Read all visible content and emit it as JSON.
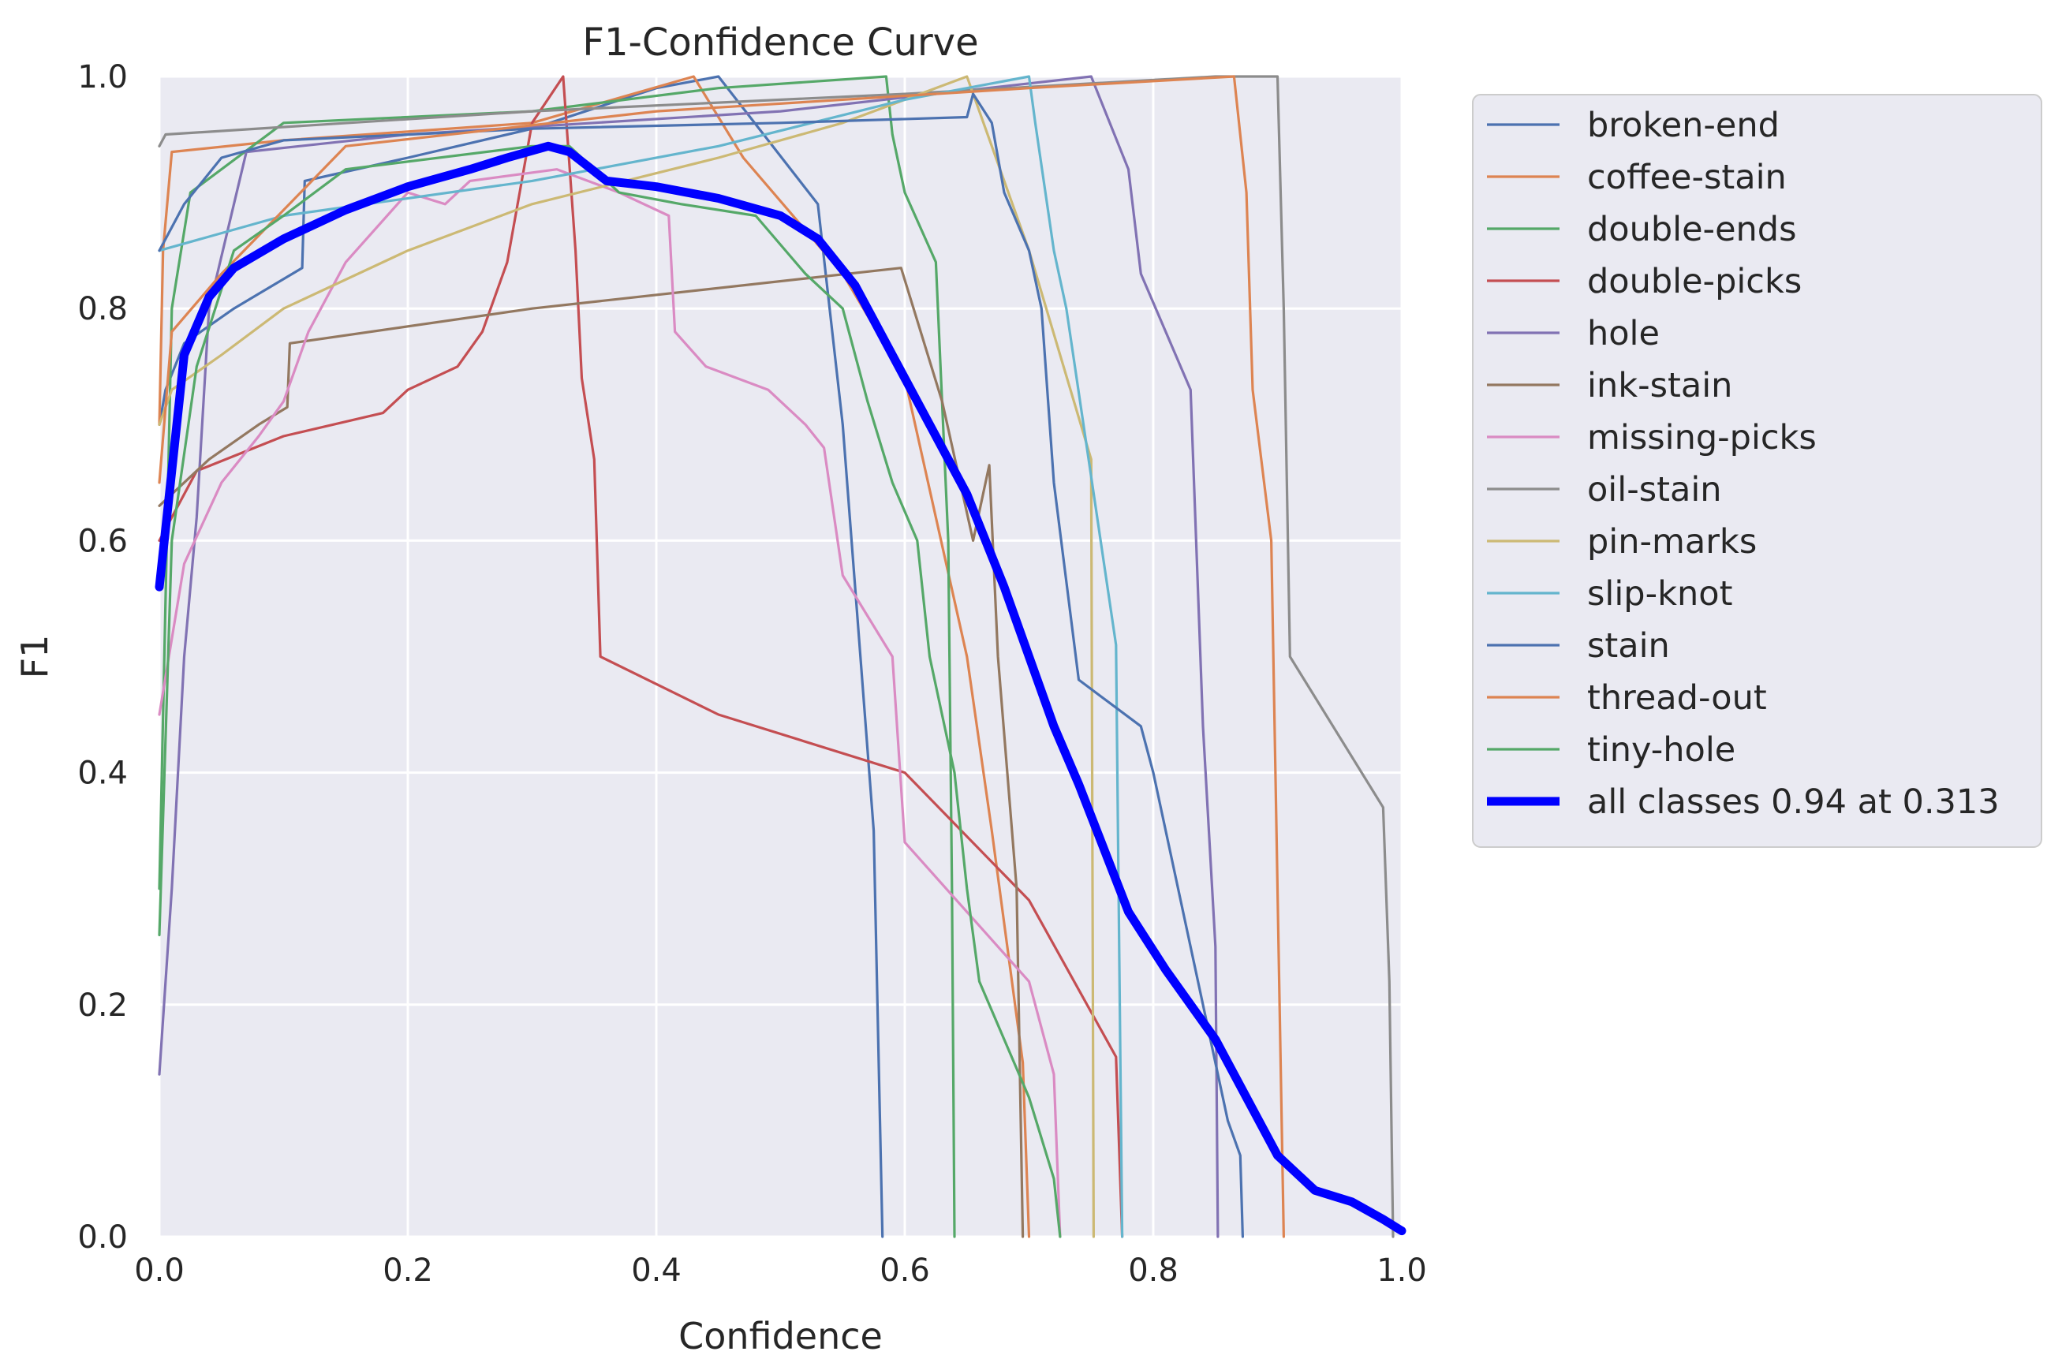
{
  "chart_data": {
    "type": "line",
    "title": "F1-Confidence Curve",
    "xlabel": "Confidence",
    "ylabel": "F1",
    "xlim": [
      0,
      1
    ],
    "ylim": [
      0,
      1
    ],
    "grid": true,
    "legend_position": "outside-top-right",
    "x_ticks": [
      "0.0",
      "0.2",
      "0.4",
      "0.6",
      "0.8",
      "1.0"
    ],
    "y_ticks": [
      "0.0",
      "0.2",
      "0.4",
      "0.6",
      "0.8",
      "1.0"
    ],
    "series": [
      {
        "name": "broken-end",
        "color": "#4c72b0",
        "width": "thin",
        "points": [
          [
            0,
            0.7
          ],
          [
            0.005,
            0.73
          ],
          [
            0.02,
            0.77
          ],
          [
            0.06,
            0.8
          ],
          [
            0.115,
            0.835
          ],
          [
            0.117,
            0.91
          ],
          [
            0.2,
            0.93
          ],
          [
            0.3,
            0.955
          ],
          [
            0.4,
            0.99
          ],
          [
            0.45,
            1.0
          ],
          [
            0.53,
            0.89
          ],
          [
            0.55,
            0.7
          ],
          [
            0.575,
            0.35
          ],
          [
            0.582,
            0.0
          ]
        ]
      },
      {
        "name": "coffee-stain",
        "color": "#dd8452",
        "width": "thin",
        "points": [
          [
            0,
            0.7
          ],
          [
            0.003,
            0.85
          ],
          [
            0.01,
            0.935
          ],
          [
            0.1,
            0.945
          ],
          [
            0.3,
            0.96
          ],
          [
            0.43,
            1.0
          ],
          [
            0.47,
            0.93
          ],
          [
            0.55,
            0.83
          ],
          [
            0.6,
            0.74
          ],
          [
            0.65,
            0.5
          ],
          [
            0.67,
            0.35
          ],
          [
            0.695,
            0.15
          ],
          [
            0.7,
            0.0
          ]
        ]
      },
      {
        "name": "double-ends",
        "color": "#55a868",
        "width": "thin",
        "points": [
          [
            0,
            0.3
          ],
          [
            0.01,
            0.8
          ],
          [
            0.025,
            0.9
          ],
          [
            0.1,
            0.96
          ],
          [
            0.3,
            0.97
          ],
          [
            0.45,
            0.99
          ],
          [
            0.585,
            1.0
          ],
          [
            0.59,
            0.95
          ],
          [
            0.6,
            0.9
          ],
          [
            0.625,
            0.84
          ],
          [
            0.635,
            0.6
          ],
          [
            0.638,
            0.3
          ],
          [
            0.64,
            0.0
          ]
        ]
      },
      {
        "name": "double-picks",
        "color": "#c44e52",
        "width": "thin",
        "points": [
          [
            0,
            0.6
          ],
          [
            0.03,
            0.66
          ],
          [
            0.1,
            0.69
          ],
          [
            0.18,
            0.71
          ],
          [
            0.2,
            0.73
          ],
          [
            0.24,
            0.75
          ],
          [
            0.26,
            0.78
          ],
          [
            0.28,
            0.84
          ],
          [
            0.29,
            0.9
          ],
          [
            0.3,
            0.96
          ],
          [
            0.325,
            1.0
          ],
          [
            0.335,
            0.85
          ],
          [
            0.34,
            0.74
          ],
          [
            0.35,
            0.67
          ],
          [
            0.355,
            0.5
          ],
          [
            0.45,
            0.45
          ],
          [
            0.6,
            0.4
          ],
          [
            0.7,
            0.29
          ],
          [
            0.77,
            0.155
          ],
          [
            0.775,
            0.0
          ]
        ]
      },
      {
        "name": "hole",
        "color": "#8172b3",
        "width": "thin",
        "points": [
          [
            0,
            0.14
          ],
          [
            0.01,
            0.3
          ],
          [
            0.02,
            0.5
          ],
          [
            0.03,
            0.62
          ],
          [
            0.04,
            0.8
          ],
          [
            0.07,
            0.935
          ],
          [
            0.2,
            0.95
          ],
          [
            0.5,
            0.97
          ],
          [
            0.75,
            1.0
          ],
          [
            0.78,
            0.92
          ],
          [
            0.79,
            0.83
          ],
          [
            0.83,
            0.73
          ],
          [
            0.84,
            0.44
          ],
          [
            0.85,
            0.25
          ],
          [
            0.852,
            0.0
          ]
        ]
      },
      {
        "name": "ink-stain",
        "color": "#937860",
        "width": "thin",
        "points": [
          [
            0,
            0.63
          ],
          [
            0.04,
            0.67
          ],
          [
            0.08,
            0.7
          ],
          [
            0.103,
            0.715
          ],
          [
            0.105,
            0.77
          ],
          [
            0.3,
            0.8
          ],
          [
            0.597,
            0.835
          ],
          [
            0.63,
            0.72
          ],
          [
            0.655,
            0.6
          ],
          [
            0.668,
            0.665
          ],
          [
            0.675,
            0.5
          ],
          [
            0.69,
            0.3
          ],
          [
            0.695,
            0.0
          ]
        ]
      },
      {
        "name": "missing-picks",
        "color": "#da8bc3",
        "width": "thin",
        "points": [
          [
            0,
            0.45
          ],
          [
            0.02,
            0.58
          ],
          [
            0.05,
            0.65
          ],
          [
            0.08,
            0.69
          ],
          [
            0.1,
            0.72
          ],
          [
            0.12,
            0.78
          ],
          [
            0.15,
            0.84
          ],
          [
            0.2,
            0.9
          ],
          [
            0.23,
            0.89
          ],
          [
            0.25,
            0.91
          ],
          [
            0.32,
            0.92
          ],
          [
            0.37,
            0.9
          ],
          [
            0.41,
            0.88
          ],
          [
            0.415,
            0.78
          ],
          [
            0.44,
            0.75
          ],
          [
            0.49,
            0.73
          ],
          [
            0.52,
            0.7
          ],
          [
            0.535,
            0.68
          ],
          [
            0.55,
            0.57
          ],
          [
            0.59,
            0.5
          ],
          [
            0.6,
            0.34
          ],
          [
            0.7,
            0.22
          ],
          [
            0.72,
            0.14
          ],
          [
            0.725,
            0.0
          ]
        ]
      },
      {
        "name": "oil-stain",
        "color": "#8c8c8c",
        "width": "thin",
        "points": [
          [
            0,
            0.94
          ],
          [
            0.005,
            0.95
          ],
          [
            0.3,
            0.97
          ],
          [
            0.6,
            0.985
          ],
          [
            0.85,
            1.0
          ],
          [
            0.9,
            1.0
          ],
          [
            0.905,
            0.8
          ],
          [
            0.91,
            0.5
          ],
          [
            0.985,
            0.37
          ],
          [
            0.99,
            0.22
          ],
          [
            0.993,
            0.0
          ]
        ]
      },
      {
        "name": "pin-marks",
        "color": "#ccb974",
        "width": "thin",
        "points": [
          [
            0,
            0.7
          ],
          [
            0.01,
            0.73
          ],
          [
            0.05,
            0.76
          ],
          [
            0.1,
            0.8
          ],
          [
            0.2,
            0.85
          ],
          [
            0.3,
            0.89
          ],
          [
            0.45,
            0.93
          ],
          [
            0.55,
            0.96
          ],
          [
            0.6,
            0.98
          ],
          [
            0.65,
            1.0
          ],
          [
            0.67,
            0.94
          ],
          [
            0.7,
            0.85
          ],
          [
            0.75,
            0.67
          ],
          [
            0.752,
            0.0
          ]
        ]
      },
      {
        "name": "slip-knot",
        "color": "#64b5cd",
        "width": "thin",
        "points": [
          [
            0,
            0.85
          ],
          [
            0.1,
            0.88
          ],
          [
            0.3,
            0.91
          ],
          [
            0.45,
            0.94
          ],
          [
            0.6,
            0.98
          ],
          [
            0.7,
            1.0
          ],
          [
            0.705,
            0.96
          ],
          [
            0.72,
            0.85
          ],
          [
            0.73,
            0.8
          ],
          [
            0.77,
            0.51
          ],
          [
            0.775,
            0.0
          ]
        ]
      },
      {
        "name": "stain",
        "color": "#4c72b0",
        "width": "thin",
        "points": [
          [
            0,
            0.85
          ],
          [
            0.02,
            0.89
          ],
          [
            0.05,
            0.93
          ],
          [
            0.1,
            0.945
          ],
          [
            0.3,
            0.955
          ],
          [
            0.5,
            0.96
          ],
          [
            0.65,
            0.965
          ],
          [
            0.655,
            0.985
          ],
          [
            0.67,
            0.96
          ],
          [
            0.68,
            0.9
          ],
          [
            0.7,
            0.85
          ],
          [
            0.71,
            0.8
          ],
          [
            0.72,
            0.65
          ],
          [
            0.74,
            0.48
          ],
          [
            0.79,
            0.44
          ],
          [
            0.8,
            0.4
          ],
          [
            0.82,
            0.3
          ],
          [
            0.84,
            0.2
          ],
          [
            0.86,
            0.1
          ],
          [
            0.87,
            0.07
          ],
          [
            0.872,
            0.0
          ]
        ]
      },
      {
        "name": "thread-out",
        "color": "#dd8452",
        "width": "thin",
        "points": [
          [
            0,
            0.65
          ],
          [
            0.01,
            0.78
          ],
          [
            0.05,
            0.83
          ],
          [
            0.15,
            0.94
          ],
          [
            0.4,
            0.97
          ],
          [
            0.7,
            0.99
          ],
          [
            0.865,
            1.0
          ],
          [
            0.875,
            0.9
          ],
          [
            0.88,
            0.73
          ],
          [
            0.895,
            0.6
          ],
          [
            0.905,
            0.0
          ]
        ]
      },
      {
        "name": "tiny-hole",
        "color": "#55a868",
        "width": "thin",
        "points": [
          [
            0,
            0.26
          ],
          [
            0.01,
            0.6
          ],
          [
            0.03,
            0.75
          ],
          [
            0.06,
            0.85
          ],
          [
            0.1,
            0.88
          ],
          [
            0.15,
            0.92
          ],
          [
            0.3,
            0.94
          ],
          [
            0.33,
            0.94
          ],
          [
            0.37,
            0.9
          ],
          [
            0.42,
            0.89
          ],
          [
            0.48,
            0.88
          ],
          [
            0.52,
            0.83
          ],
          [
            0.55,
            0.8
          ],
          [
            0.57,
            0.72
          ],
          [
            0.59,
            0.65
          ],
          [
            0.61,
            0.6
          ],
          [
            0.62,
            0.5
          ],
          [
            0.64,
            0.4
          ],
          [
            0.65,
            0.3
          ],
          [
            0.66,
            0.22
          ],
          [
            0.68,
            0.17
          ],
          [
            0.7,
            0.12
          ],
          [
            0.72,
            0.05
          ],
          [
            0.725,
            0.0
          ]
        ]
      },
      {
        "name": "all classes 0.94 at 0.313",
        "color": "#0000ff",
        "width": "thick",
        "points": [
          [
            0,
            0.56
          ],
          [
            0.01,
            0.66
          ],
          [
            0.02,
            0.76
          ],
          [
            0.04,
            0.81
          ],
          [
            0.06,
            0.835
          ],
          [
            0.1,
            0.86
          ],
          [
            0.15,
            0.885
          ],
          [
            0.2,
            0.905
          ],
          [
            0.25,
            0.92
          ],
          [
            0.28,
            0.93
          ],
          [
            0.313,
            0.94
          ],
          [
            0.33,
            0.935
          ],
          [
            0.36,
            0.91
          ],
          [
            0.4,
            0.905
          ],
          [
            0.45,
            0.895
          ],
          [
            0.5,
            0.88
          ],
          [
            0.53,
            0.86
          ],
          [
            0.56,
            0.82
          ],
          [
            0.6,
            0.74
          ],
          [
            0.65,
            0.64
          ],
          [
            0.68,
            0.56
          ],
          [
            0.72,
            0.44
          ],
          [
            0.74,
            0.39
          ],
          [
            0.78,
            0.28
          ],
          [
            0.81,
            0.23
          ],
          [
            0.85,
            0.17
          ],
          [
            0.88,
            0.11
          ],
          [
            0.9,
            0.07
          ],
          [
            0.93,
            0.04
          ],
          [
            0.96,
            0.03
          ],
          [
            0.985,
            0.015
          ],
          [
            1.0,
            0.005
          ]
        ]
      }
    ]
  }
}
